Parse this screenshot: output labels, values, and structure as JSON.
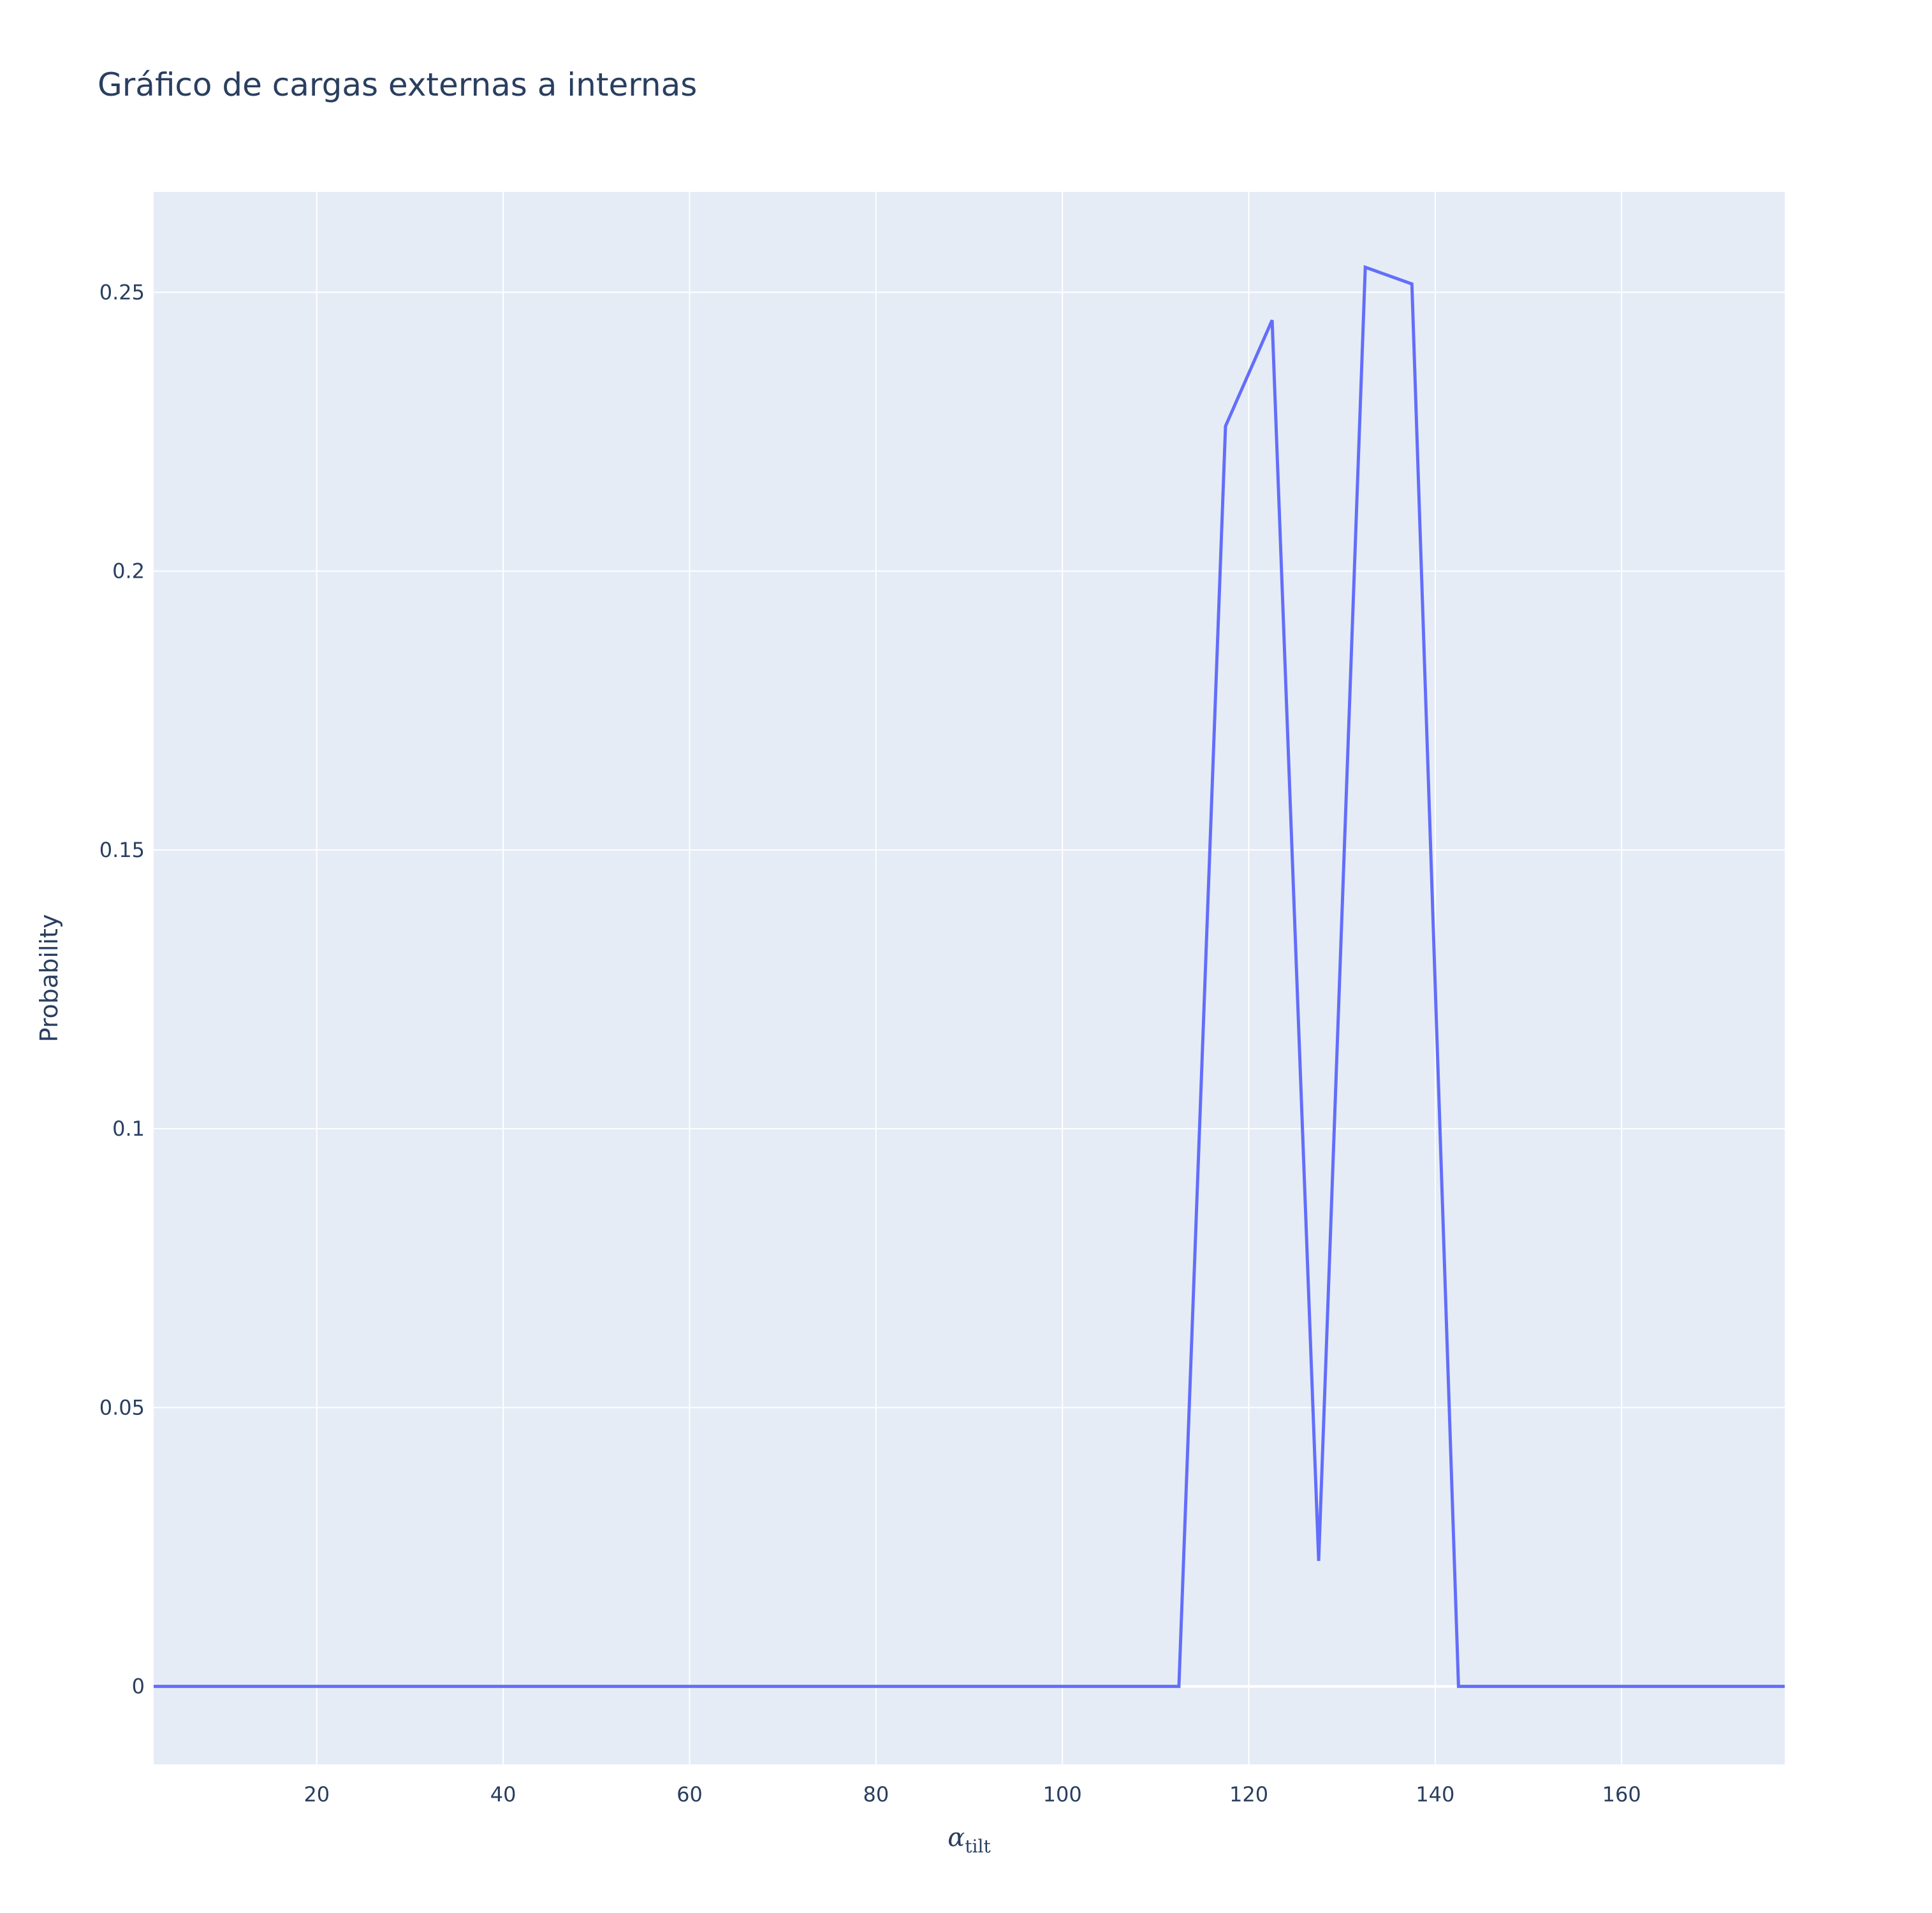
{
  "chart_data": {
    "type": "line",
    "title": "Gráfico de cargas externas a internas",
    "xlabel": {
      "main": "α",
      "sub": "tilt"
    },
    "ylabel": "Probability",
    "xlim": [
      2.5,
      177.5
    ],
    "ylim": [
      -0.014,
      0.268
    ],
    "xticks": [
      20,
      40,
      60,
      80,
      100,
      120,
      140,
      160
    ],
    "xtick_labels": [
      "20",
      "40",
      "60",
      "80",
      "100",
      "120",
      "140",
      "160"
    ],
    "yticks": [
      0,
      0.05,
      0.1,
      0.15,
      0.2,
      0.25
    ],
    "ytick_labels": [
      "0",
      "0.05",
      "0.1",
      "0.15",
      "0.2",
      "0.25"
    ],
    "grid": true,
    "colors": {
      "line": "#636efa",
      "plot_bg": "#e5ecf6",
      "grid": "#ffffff",
      "text": "#2a3f5f"
    },
    "series": [
      {
        "x": [
          2.5,
          7.5,
          12.5,
          17.5,
          22.5,
          27.5,
          32.5,
          37.5,
          42.5,
          47.5,
          52.5,
          57.5,
          62.5,
          67.5,
          72.5,
          77.5,
          82.5,
          87.5,
          92.5,
          97.5,
          102.5,
          107.5,
          112.5,
          117.5,
          122.5,
          127.5,
          132.5,
          137.5,
          142.5,
          147.5,
          152.5,
          157.5,
          162.5,
          167.5,
          172.5,
          177.5
        ],
        "y": [
          0,
          0,
          0,
          0,
          0,
          0,
          0,
          0,
          0,
          0,
          0,
          0,
          0,
          0,
          0,
          0,
          0,
          0,
          0,
          0,
          0,
          0,
          0,
          0.226,
          0.245,
          0.0225,
          0.2545,
          0.2515,
          0,
          0,
          0,
          0,
          0,
          0,
          0,
          0
        ]
      }
    ]
  }
}
